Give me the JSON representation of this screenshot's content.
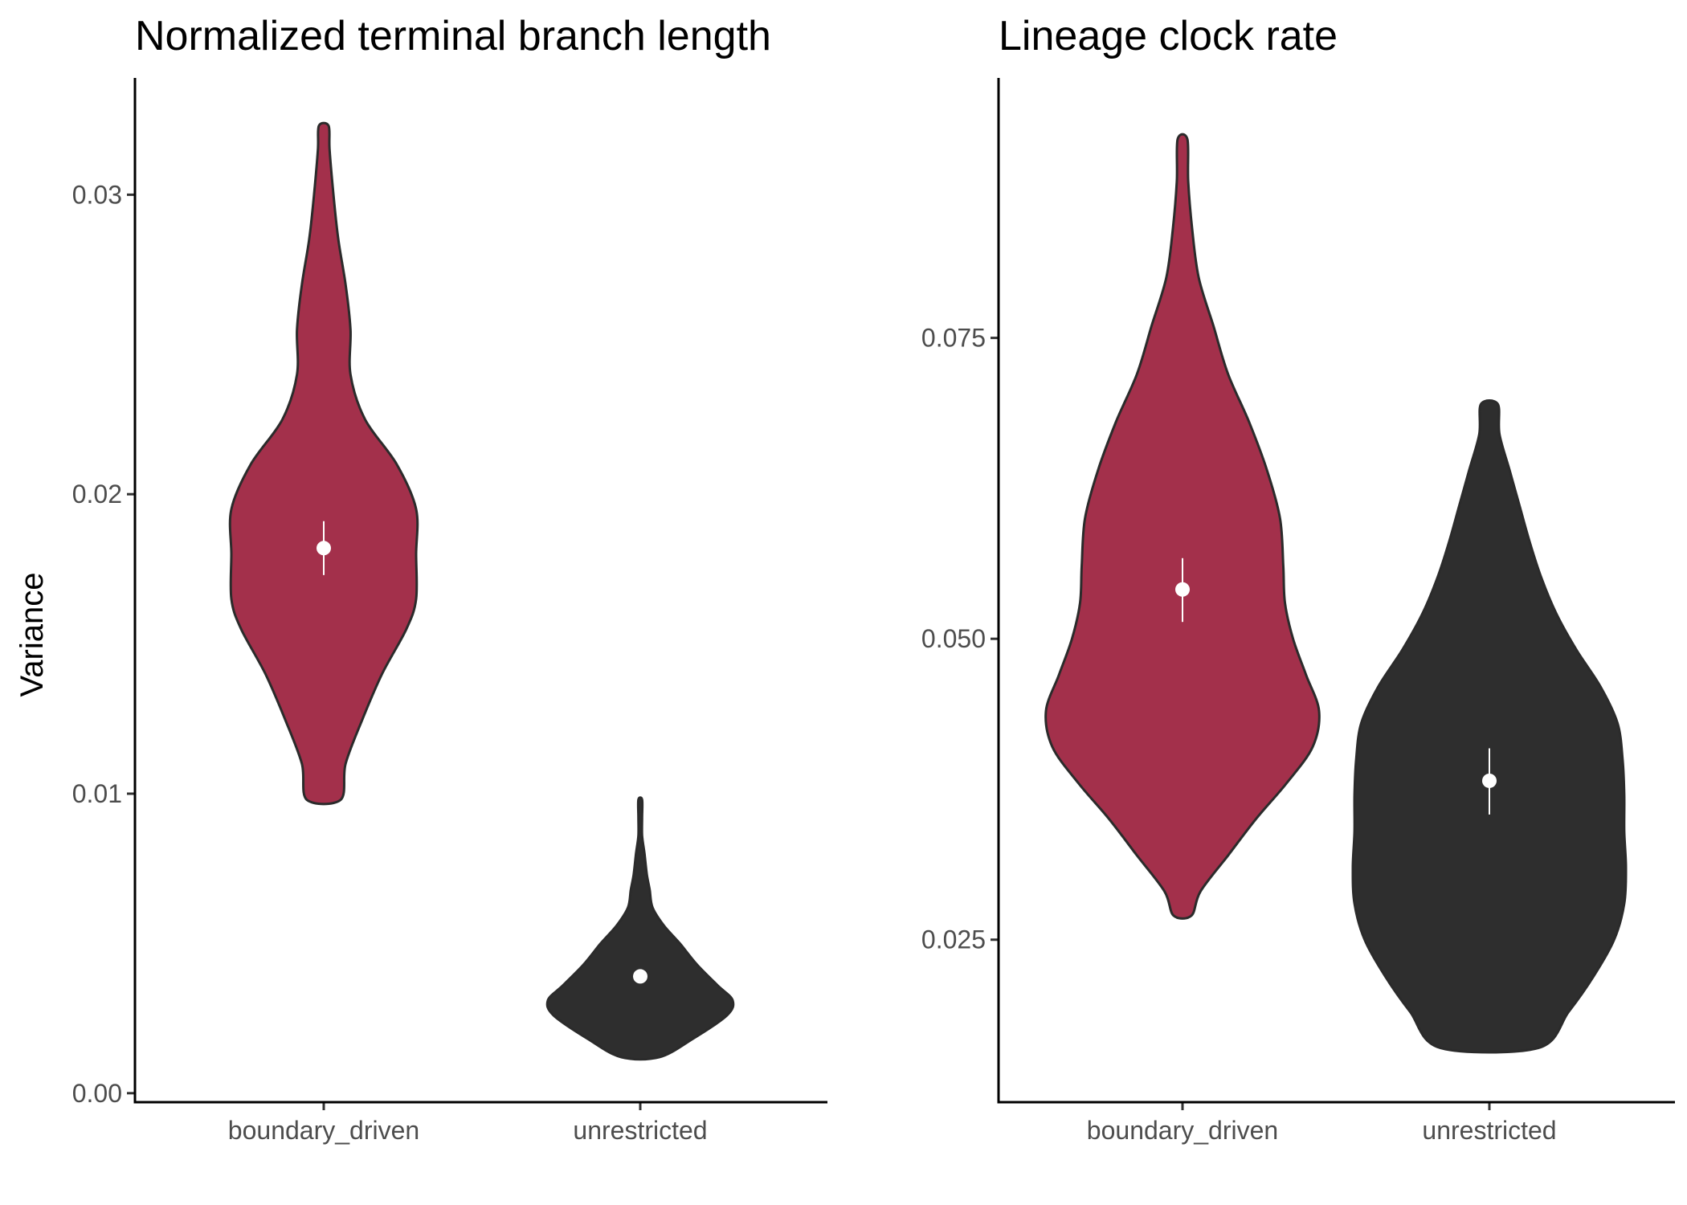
{
  "chart_data": [
    {
      "type": "violin",
      "title": "Normalized terminal branch length",
      "ylabel": "Variance",
      "xlabel": "",
      "categories": [
        "boundary_driven",
        "unrestricted"
      ],
      "ylim": [
        -0.0003,
        0.0339
      ],
      "yticks": [
        0.0,
        0.01,
        0.02,
        0.03
      ],
      "ytick_labels": [
        "0.00",
        "0.01",
        "0.02",
        "0.03"
      ],
      "grid": false,
      "legend": "none",
      "colors": [
        "#a3304b",
        "#2e2e2e"
      ],
      "outline_color": "#2b2b2b",
      "point_color": "#ffffff",
      "violins": [
        {
          "category": "boundary_driven",
          "min": 0.0098,
          "max": 0.0323,
          "mean": 0.0182,
          "ci_low": 0.0173,
          "ci_high": 0.0191,
          "density": [
            [
              0.0098,
              0.035
            ],
            [
              0.011,
              0.045
            ],
            [
              0.0125,
              0.08
            ],
            [
              0.014,
              0.12
            ],
            [
              0.0155,
              0.17
            ],
            [
              0.0165,
              0.19
            ],
            [
              0.018,
              0.19
            ],
            [
              0.0195,
              0.19
            ],
            [
              0.021,
              0.15
            ],
            [
              0.0225,
              0.085
            ],
            [
              0.024,
              0.055
            ],
            [
              0.0255,
              0.055
            ],
            [
              0.027,
              0.045
            ],
            [
              0.0285,
              0.03
            ],
            [
              0.03,
              0.02
            ],
            [
              0.0315,
              0.012
            ],
            [
              0.0323,
              0.01
            ]
          ]
        },
        {
          "category": "unrestricted",
          "min": 0.0012,
          "max": 0.0098,
          "mean": 0.0039,
          "ci_low": 0.0037,
          "ci_high": 0.0041,
          "density": [
            [
              0.0012,
              0.2
            ],
            [
              0.0018,
              0.55
            ],
            [
              0.0026,
              0.92
            ],
            [
              0.0031,
              0.98
            ],
            [
              0.0036,
              0.82
            ],
            [
              0.0043,
              0.6
            ],
            [
              0.005,
              0.42
            ],
            [
              0.0056,
              0.25
            ],
            [
              0.0062,
              0.13
            ],
            [
              0.0068,
              0.1
            ],
            [
              0.0073,
              0.07
            ],
            [
              0.008,
              0.045
            ],
            [
              0.0086,
              0.02
            ],
            [
              0.0092,
              0.02
            ],
            [
              0.0098,
              0.02
            ]
          ]
        }
      ]
    },
    {
      "type": "violin",
      "title": "Lineage clock rate",
      "ylabel": "",
      "xlabel": "",
      "categories": [
        "boundary_driven",
        "unrestricted"
      ],
      "ylim": [
        0.0115,
        0.0966
      ],
      "yticks": [
        0.025,
        0.05,
        0.075
      ],
      "ytick_labels": [
        "0.025",
        "0.050",
        "0.075"
      ],
      "grid": false,
      "legend": "none",
      "colors": [
        "#a3304b",
        "#2e2e2e"
      ],
      "outline_color": "#2b2b2b",
      "point_color": "#ffffff",
      "violins": [
        {
          "category": "boundary_driven",
          "min": 0.027,
          "max": 0.0915,
          "mean": 0.0541,
          "ci_low": 0.0514,
          "ci_high": 0.0567,
          "density": [
            [
              0.027,
              0.055
            ],
            [
              0.029,
              0.11
            ],
            [
              0.032,
              0.28
            ],
            [
              0.035,
              0.45
            ],
            [
              0.038,
              0.64
            ],
            [
              0.041,
              0.8
            ],
            [
              0.044,
              0.84
            ],
            [
              0.047,
              0.76
            ],
            [
              0.05,
              0.68
            ],
            [
              0.053,
              0.63
            ],
            [
              0.056,
              0.62
            ],
            [
              0.06,
              0.6
            ],
            [
              0.064,
              0.52
            ],
            [
              0.068,
              0.41
            ],
            [
              0.072,
              0.28
            ],
            [
              0.076,
              0.19
            ],
            [
              0.08,
              0.1
            ],
            [
              0.084,
              0.06
            ],
            [
              0.088,
              0.035
            ],
            [
              0.0915,
              0.03
            ]
          ]
        },
        {
          "category": "unrestricted",
          "min": 0.016,
          "max": 0.0695,
          "mean": 0.0382,
          "ci_low": 0.0354,
          "ci_high": 0.0409,
          "density": [
            [
              0.016,
              0.29
            ],
            [
              0.019,
              0.47
            ],
            [
              0.022,
              0.62
            ],
            [
              0.025,
              0.74
            ],
            [
              0.028,
              0.8
            ],
            [
              0.031,
              0.81
            ],
            [
              0.034,
              0.8
            ],
            [
              0.037,
              0.8
            ],
            [
              0.04,
              0.79
            ],
            [
              0.043,
              0.76
            ],
            [
              0.046,
              0.66
            ],
            [
              0.049,
              0.52
            ],
            [
              0.052,
              0.4
            ],
            [
              0.055,
              0.31
            ],
            [
              0.058,
              0.24
            ],
            [
              0.061,
              0.18
            ],
            [
              0.064,
              0.12
            ],
            [
              0.067,
              0.06
            ],
            [
              0.0695,
              0.05
            ]
          ]
        }
      ]
    }
  ]
}
